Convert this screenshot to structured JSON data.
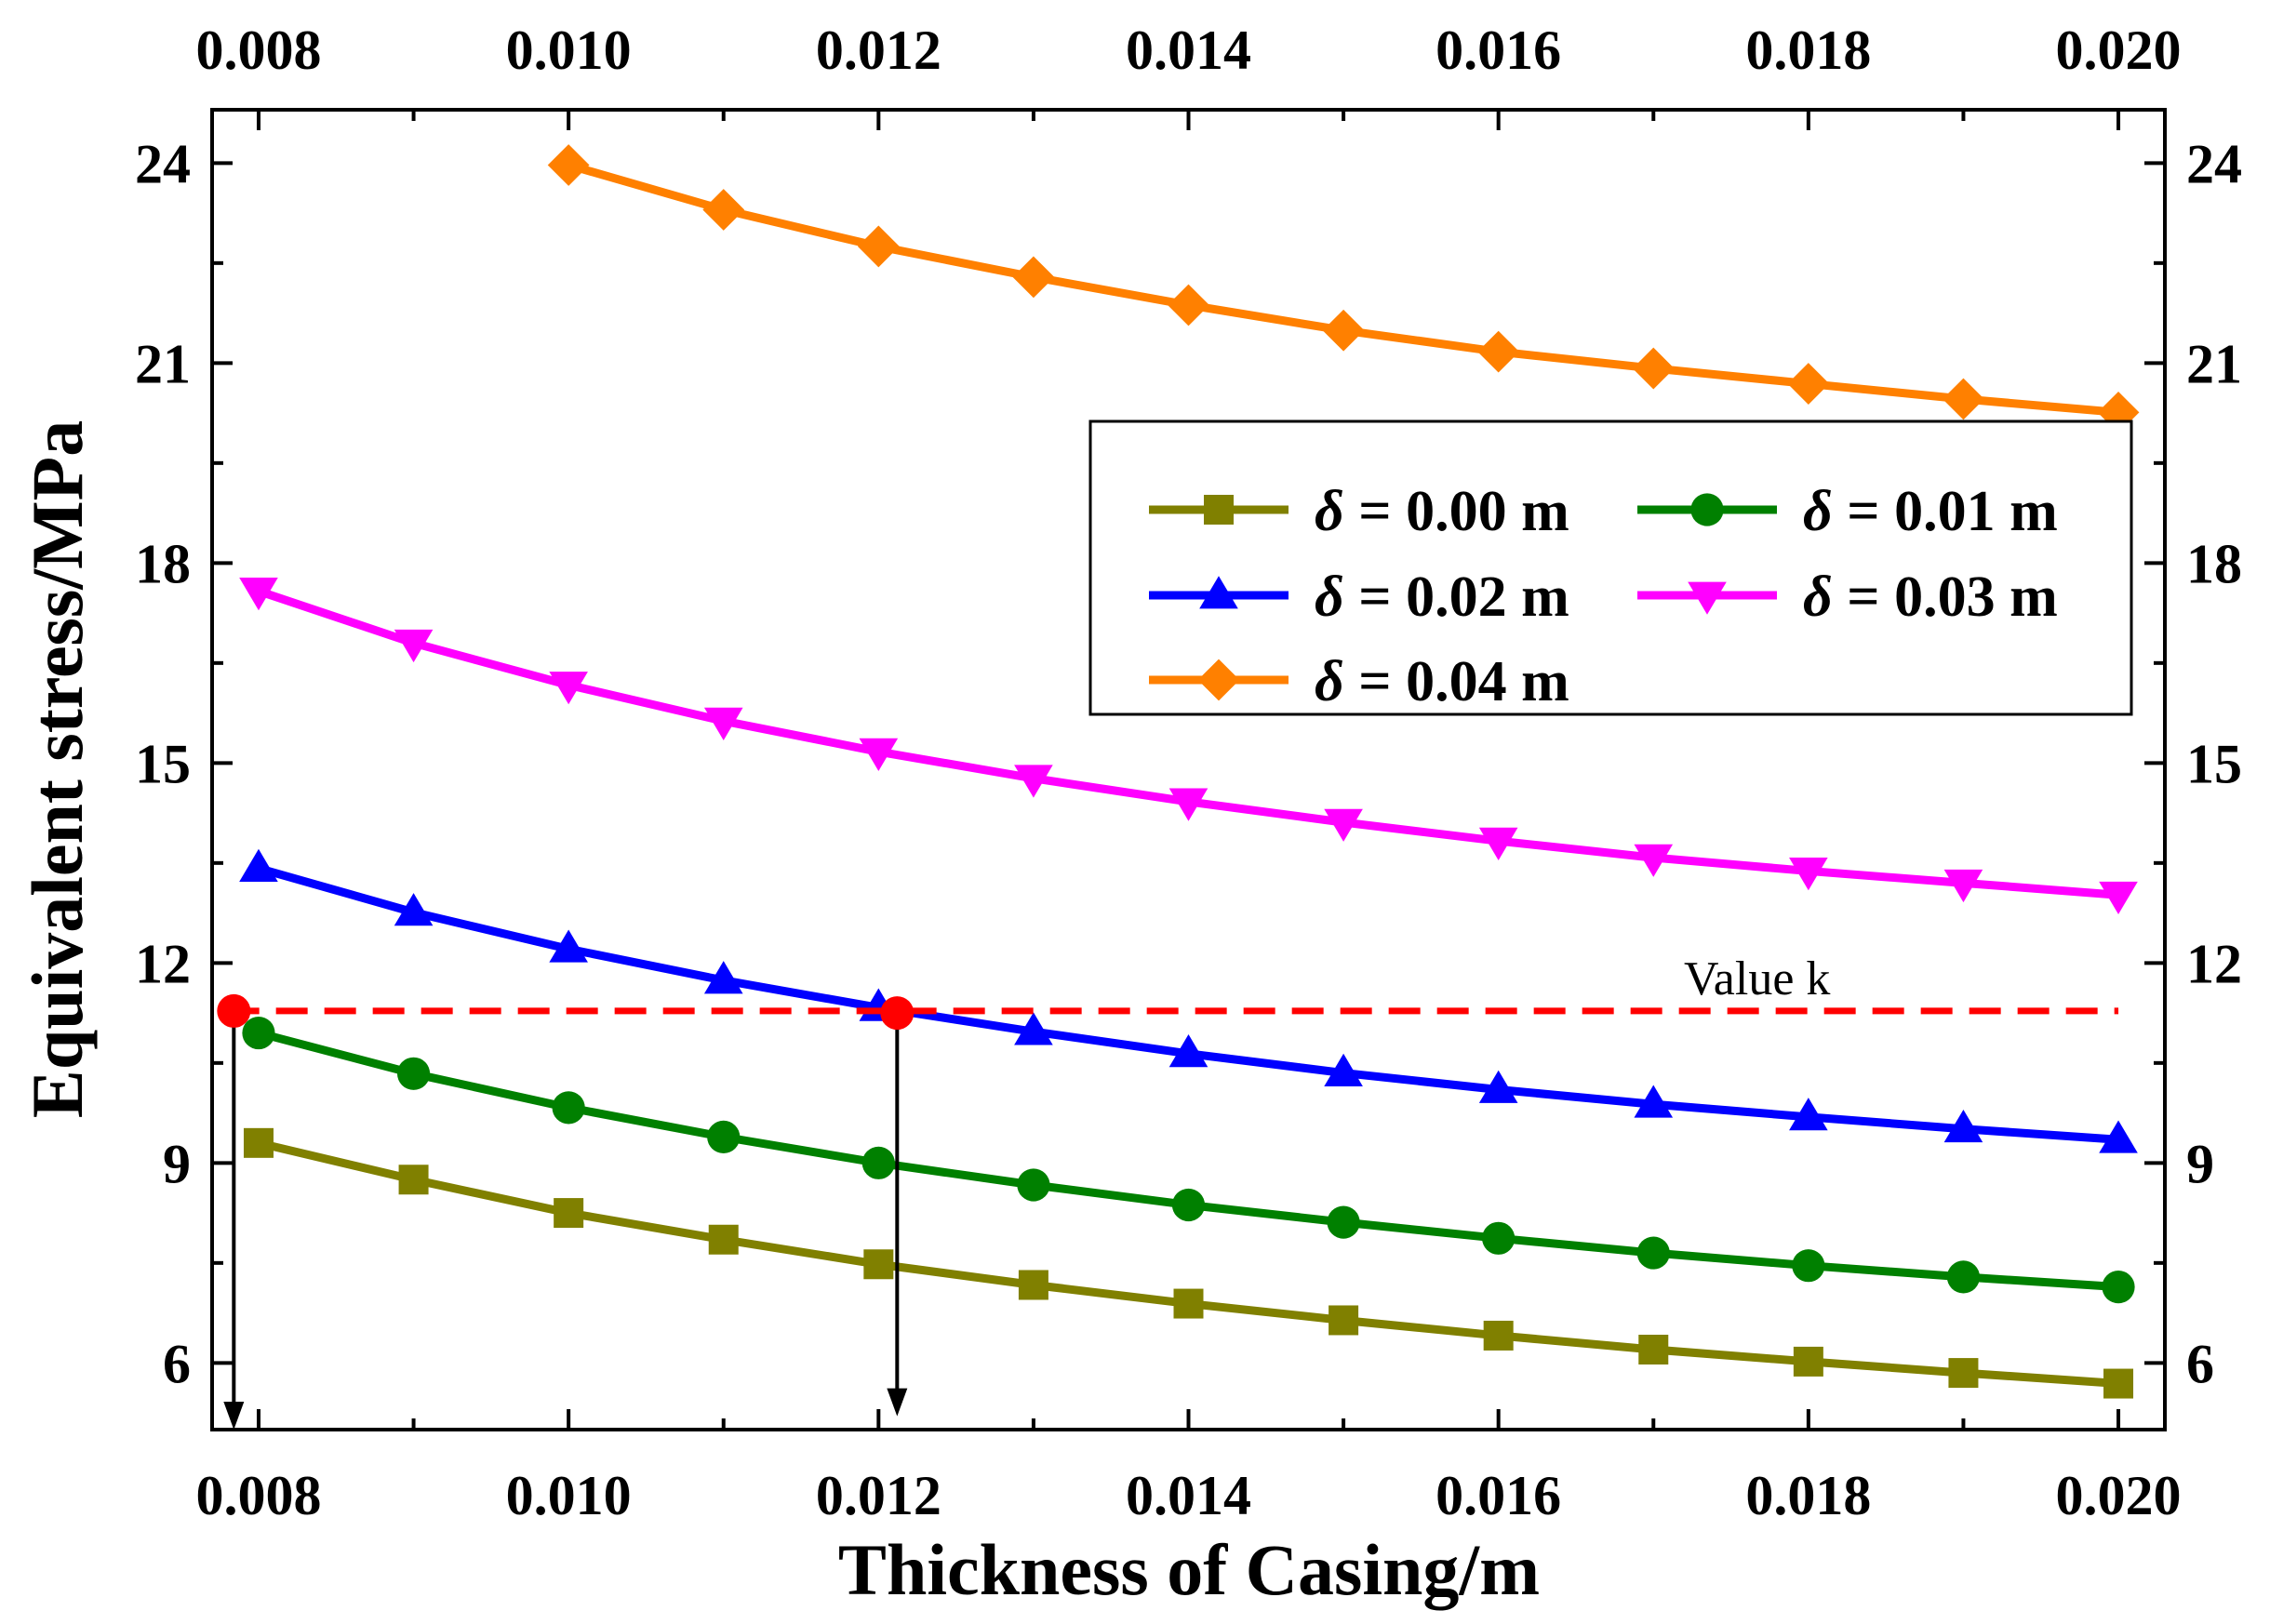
{
  "chart_data": {
    "type": "line",
    "title": "",
    "xlabel": "Thickness of Casing/m",
    "ylabel": "Equivalent stress/MPa",
    "xlim": [
      0.0077,
      0.0203
    ],
    "ylim": [
      5.0,
      24.8
    ],
    "x_ticks": [
      0.008,
      0.01,
      0.012,
      0.014,
      0.016,
      0.018,
      0.02
    ],
    "x_tick_labels": [
      "0.008",
      "0.010",
      "0.012",
      "0.014",
      "0.016",
      "0.018",
      "0.020"
    ],
    "top_x_tick_labels": [
      "0.008",
      "0.010",
      "0.012",
      "0.014",
      "0.016",
      "0.018",
      "0.020"
    ],
    "y_ticks": [
      6,
      9,
      12,
      15,
      18,
      21,
      24
    ],
    "y_tick_labels": [
      "6",
      "9",
      "12",
      "15",
      "18",
      "21",
      "24"
    ],
    "right_y_tick_labels": [
      "6",
      "9",
      "12",
      "15",
      "18",
      "21",
      "24"
    ],
    "legend_position": "upper-right",
    "series": [
      {
        "name": "δ = 0.00 m",
        "symbol": "δ",
        "eq_label": " = 0.00 m",
        "color": "#808000",
        "marker": "square",
        "x": [
          0.008,
          0.009,
          0.01,
          0.011,
          0.012,
          0.013,
          0.014,
          0.015,
          0.016,
          0.017,
          0.018,
          0.019,
          0.02
        ],
        "values": [
          9.3,
          8.75,
          8.25,
          7.85,
          7.48,
          7.17,
          6.89,
          6.64,
          6.41,
          6.2,
          6.02,
          5.85,
          5.69
        ]
      },
      {
        "name": "δ = 0.01 m",
        "symbol": "δ",
        "eq_label": " = 0.01 m",
        "color": "#008000",
        "marker": "circle",
        "x": [
          0.008,
          0.009,
          0.01,
          0.011,
          0.012,
          0.013,
          0.014,
          0.015,
          0.016,
          0.017,
          0.018,
          0.019,
          0.02
        ],
        "values": [
          10.95,
          10.34,
          9.83,
          9.39,
          9.0,
          8.67,
          8.37,
          8.11,
          7.87,
          7.65,
          7.46,
          7.29,
          7.14
        ]
      },
      {
        "name": "δ = 0.02 m",
        "symbol": "δ",
        "eq_label": " = 0.02 m",
        "color": "#0000ff",
        "marker": "triangle-up",
        "x": [
          0.008,
          0.009,
          0.01,
          0.011,
          0.012,
          0.013,
          0.014,
          0.015,
          0.016,
          0.017,
          0.018,
          0.019,
          0.02
        ],
        "values": [
          13.42,
          12.76,
          12.21,
          11.74,
          11.33,
          10.97,
          10.64,
          10.35,
          10.1,
          9.88,
          9.69,
          9.51,
          9.35
        ]
      },
      {
        "name": "δ = 0.03 m",
        "symbol": "δ",
        "eq_label": " = 0.03 m",
        "color": "#ff00ff",
        "marker": "triangle-down",
        "x": [
          0.008,
          0.009,
          0.01,
          0.011,
          0.012,
          0.013,
          0.014,
          0.015,
          0.016,
          0.017,
          0.018,
          0.019,
          0.02
        ],
        "values": [
          17.58,
          16.8,
          16.17,
          15.63,
          15.17,
          14.77,
          14.42,
          14.11,
          13.83,
          13.58,
          13.38,
          13.2,
          13.02
        ]
      },
      {
        "name": "δ = 0.04 m",
        "symbol": "δ",
        "eq_label": " = 0.04 m",
        "color": "#ff8000",
        "marker": "diamond",
        "x": [
          0.01,
          0.011,
          0.012,
          0.013,
          0.014,
          0.015,
          0.016,
          0.017,
          0.018,
          0.019,
          0.02
        ],
        "values": [
          23.97,
          23.3,
          22.75,
          22.29,
          21.87,
          21.49,
          21.17,
          20.92,
          20.69,
          20.46,
          20.26
        ]
      }
    ],
    "reference_line": {
      "label": "Value k",
      "value": 11.28,
      "x_range": [
        0.0078,
        0.02
      ],
      "color": "#ff0000",
      "style": "dashed"
    },
    "intersection_points": {
      "color": "#ff0000",
      "points": [
        {
          "x": 0.00784,
          "y": 11.28
        },
        {
          "x": 0.01212,
          "y": 11.25
        }
      ]
    },
    "arrows": {
      "color": "#000000",
      "items": [
        {
          "x": 0.00784,
          "from_y": 11.28,
          "to_y": 5.0
        },
        {
          "x": 0.01212,
          "from_y": 11.25,
          "to_y": 5.2
        }
      ]
    }
  }
}
